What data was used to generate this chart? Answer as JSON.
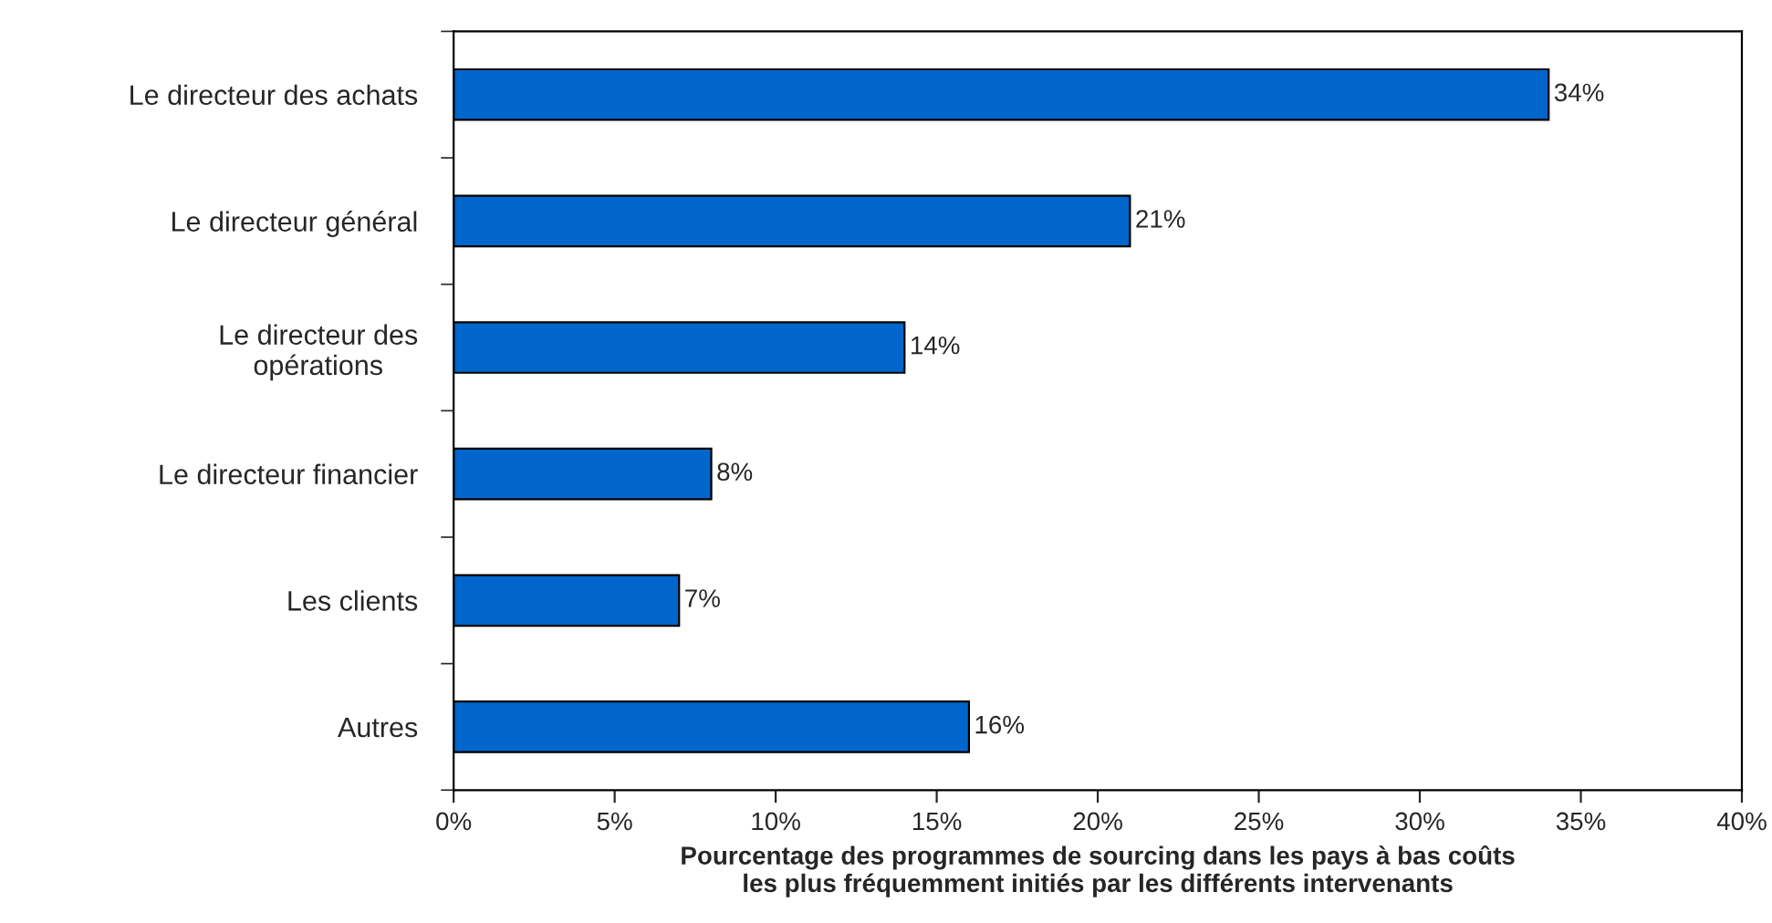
{
  "chart_data": {
    "type": "bar",
    "orientation": "horizontal",
    "xlabel": "Pourcentage des programmes de sourcing dans les pays à bas coûts\nles plus fréquemment initiés par les différents intervenants",
    "categories": [
      "Le directeur des achats",
      "Le directeur général",
      "Le directeur des\nopérations",
      "Le directeur financier",
      "Les clients",
      "Autres"
    ],
    "values": [
      34,
      21,
      14,
      8,
      7,
      16
    ],
    "value_labels": [
      "34%",
      "21%",
      "14%",
      "8%",
      "7%",
      "16%"
    ],
    "color": "#0066cc",
    "xlim": [
      0,
      40
    ],
    "xticks": [
      {
        "value": 0,
        "label": "0%"
      },
      {
        "value": 5,
        "label": "5%"
      },
      {
        "value": 10,
        "label": "10%"
      },
      {
        "value": 15,
        "label": "15%"
      },
      {
        "value": 20,
        "label": "20%"
      },
      {
        "value": 25,
        "label": "25%"
      },
      {
        "value": 30,
        "label": "30%"
      },
      {
        "value": 35,
        "label": "35%"
      },
      {
        "value": 40,
        "label": "40%"
      }
    ],
    "grid": false,
    "legend": false
  }
}
